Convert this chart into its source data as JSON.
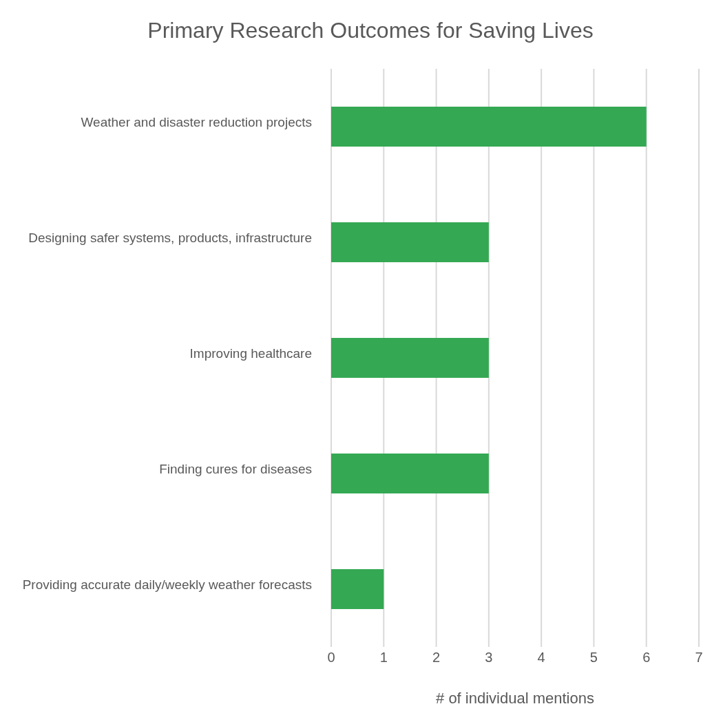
{
  "chart_data": {
    "type": "bar",
    "orientation": "horizontal",
    "title": "Primary Research Outcomes for Saving Lives",
    "xlabel": "# of individual mentions",
    "categories": [
      "Weather and disaster reduction projects",
      "Designing safer systems, products, infrastructure",
      "Improving healthcare",
      "Finding cures for diseases",
      "Providing accurate daily/weekly weather forecasts"
    ],
    "values": [
      6,
      3,
      3,
      3,
      1
    ],
    "color": "#34a853",
    "xlim": [
      0,
      7
    ],
    "xticks": [
      0,
      1,
      2,
      3,
      4,
      5,
      6,
      7
    ],
    "grid": "x"
  }
}
